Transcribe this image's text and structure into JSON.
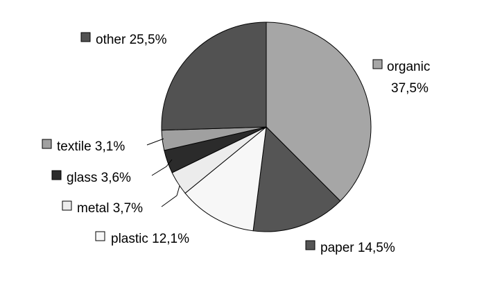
{
  "chart_data": {
    "type": "pie",
    "slices": [
      {
        "label": "organic",
        "value": 37.5,
        "value_text": "37,5%",
        "color": "#a6a6a6"
      },
      {
        "label": "paper",
        "value": 14.5,
        "value_text": "14,5%",
        "color": "#555555"
      },
      {
        "label": "plastic",
        "value": 12.1,
        "value_text": "12,1%",
        "color": "#f7f7f7"
      },
      {
        "label": "metal",
        "value": 3.7,
        "value_text": "3,7%",
        "color": "#ececec"
      },
      {
        "label": "glass",
        "value": 3.6,
        "value_text": "3,6%",
        "color": "#2b2b2b"
      },
      {
        "label": "textile",
        "value": 3.1,
        "value_text": "3,1%",
        "color": "#a0a0a0"
      },
      {
        "label": "other",
        "value": 25.5,
        "value_text": "25,5%",
        "color": "#525252"
      }
    ],
    "start_angle": "12 o'clock",
    "direction": "clockwise",
    "labels": "outside with legend keys",
    "legend": "none"
  }
}
